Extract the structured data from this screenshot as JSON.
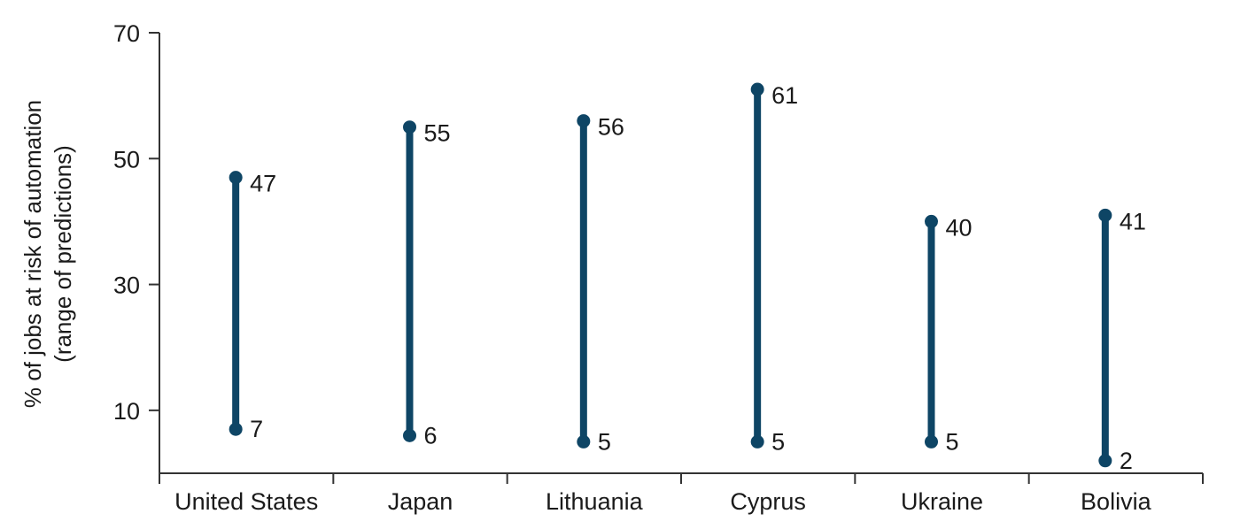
{
  "chart_data": {
    "type": "range",
    "ylabel_line1": "% of jobs at risk of automation",
    "ylabel_line2": "(range of predictions)",
    "ylim": [
      0,
      70
    ],
    "yticks": [
      10,
      30,
      50,
      70
    ],
    "categories": [
      "United States",
      "Japan",
      "Lithuania",
      "Cyprus",
      "Ukraine",
      "Bolivia"
    ],
    "low": [
      7,
      6,
      5,
      5,
      5,
      2
    ],
    "high": [
      47,
      55,
      56,
      61,
      40,
      41
    ],
    "low_labels": [
      "7",
      "6",
      "5",
      "5",
      "5",
      "2"
    ],
    "high_labels": [
      "47",
      "55",
      "56",
      "61",
      "40",
      "41"
    ],
    "grid": false,
    "colors": {
      "range": "#0e4565",
      "axis": "#333333"
    }
  }
}
